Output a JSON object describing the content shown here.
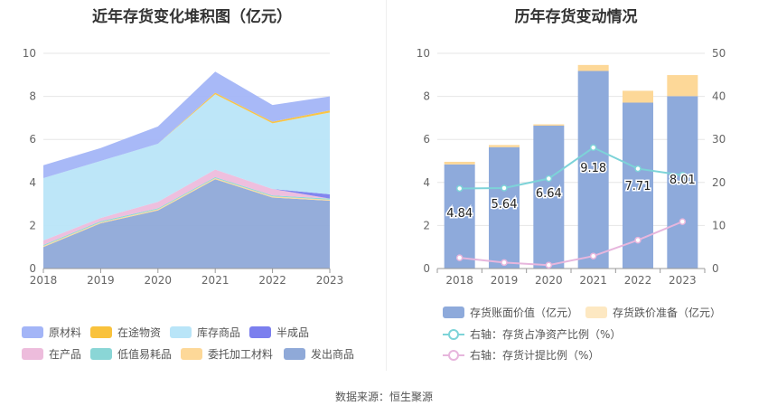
{
  "left_chart_title": "近年存货变化堆积图（亿元）",
  "right_chart_title": "历年存货变动情况",
  "source": "数据来源：恒生聚源",
  "chart_data": [
    {
      "type": "area",
      "stacked": true,
      "title": "近年存货变化堆积图（亿元）",
      "categories": [
        "2018",
        "2019",
        "2020",
        "2021",
        "2022",
        "2023"
      ],
      "ylim": [
        0,
        10
      ],
      "yticks": [
        "0",
        "2",
        "4",
        "6",
        "8",
        "10"
      ],
      "series": [
        {
          "name": "发出商品",
          "color": "#8fa9d8",
          "values": [
            1.0,
            2.1,
            2.7,
            4.15,
            3.3,
            3.15
          ]
        },
        {
          "name": "委托加工材料",
          "color": "#fdd898",
          "values": [
            0.05,
            0.05,
            0.05,
            0.05,
            0.05,
            0.05
          ]
        },
        {
          "name": "低值易耗品",
          "color": "#8ad6d6",
          "values": [
            0.05,
            0.05,
            0.05,
            0.05,
            0.05,
            0.05
          ]
        },
        {
          "name": "在产品",
          "color": "#edbcdc",
          "values": [
            0.2,
            0.15,
            0.3,
            0.35,
            0.3,
            0.0
          ]
        },
        {
          "name": "半成品",
          "color": "#7b7fee",
          "values": [
            0.0,
            0.0,
            0.0,
            0.0,
            0.0,
            0.2
          ]
        },
        {
          "name": "库存商品",
          "color": "#b9e5f8",
          "values": [
            2.9,
            2.65,
            2.7,
            3.5,
            3.05,
            3.8
          ]
        },
        {
          "name": "在途物资",
          "color": "#f9c23c",
          "values": [
            0.0,
            0.0,
            0.0,
            0.07,
            0.07,
            0.1
          ]
        },
        {
          "name": "原材料",
          "color": "#a3b5f7",
          "values": [
            0.6,
            0.6,
            0.8,
            0.98,
            0.78,
            0.65
          ]
        }
      ],
      "legend": [
        "原材料",
        "在途物资",
        "库存商品",
        "半成品",
        "在产品",
        "低值易耗品",
        "委托加工材料",
        "发出商品"
      ]
    },
    {
      "type": "bar",
      "title": "历年存货变动情况",
      "categories": [
        "2018",
        "2019",
        "2020",
        "2021",
        "2022",
        "2023"
      ],
      "ylim": [
        0,
        10
      ],
      "yticks": [
        "0",
        "2",
        "4",
        "6",
        "8",
        "10"
      ],
      "y2lim": [
        0,
        50
      ],
      "y2ticks": [
        "0",
        "10",
        "20",
        "30",
        "40",
        "50"
      ],
      "bars": [
        {
          "name": "存货账面价值（亿元）",
          "color": "#8eaadb",
          "values": [
            4.84,
            5.64,
            6.64,
            9.18,
            7.71,
            8.01
          ],
          "labels": [
            "4.84",
            "5.64",
            "6.64",
            "9.18",
            "7.71",
            "8.01"
          ]
        },
        {
          "name": "存货跌价准备（亿元）",
          "color": "#fdd898",
          "values": [
            0.12,
            0.1,
            0.06,
            0.28,
            0.55,
            0.98
          ]
        }
      ],
      "lines": [
        {
          "name": "右轴：存货占净资产比例（%）",
          "color": "#7dd3d8",
          "values": [
            18.6,
            18.7,
            20.9,
            28.1,
            23.2,
            21.7
          ]
        },
        {
          "name": "右轴：存货计提比例（%）",
          "color": "#e7b6dd",
          "values": [
            2.5,
            1.4,
            0.8,
            2.9,
            6.6,
            10.9
          ]
        }
      ]
    }
  ]
}
